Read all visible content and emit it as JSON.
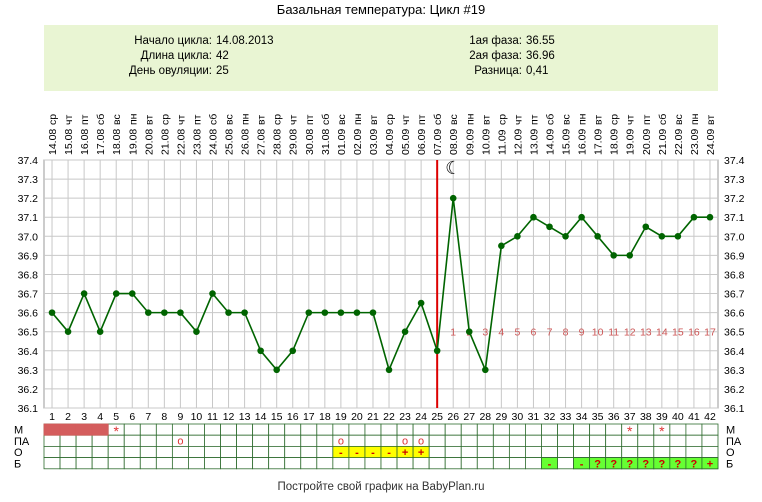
{
  "title": "Базальная температура: Цикл #19",
  "info": {
    "cycle_start_label": "Начало цикла:",
    "cycle_start_value": "14.08.2013",
    "cycle_length_label": "Длина цикла:",
    "cycle_length_value": "42",
    "ovulation_day_label": "День овуляции:",
    "ovulation_day_value": "25",
    "phase1_label": "1ая фаза:",
    "phase1_value": "36.55",
    "phase2_label": "2ая фаза:",
    "phase2_value": "36.96",
    "diff_label": "Разница:",
    "diff_value": "0,41"
  },
  "footer": "Постройте свой график на BabyPlan.ru",
  "chart_data": {
    "type": "line",
    "x": [
      1,
      2,
      3,
      4,
      5,
      6,
      7,
      8,
      9,
      10,
      11,
      12,
      13,
      14,
      15,
      16,
      17,
      18,
      19,
      20,
      21,
      22,
      23,
      24,
      25,
      26,
      27,
      28,
      29,
      30,
      31,
      32,
      33,
      34,
      35,
      36,
      37,
      38,
      39,
      40,
      41,
      42
    ],
    "dates": [
      "14.08",
      "15.08",
      "16.08",
      "17.08",
      "18.08",
      "19.08",
      "20.08",
      "21.08",
      "22.08",
      "23.08",
      "24.08",
      "25.08",
      "26.08",
      "27.08",
      "28.08",
      "29.08",
      "30.08",
      "31.08",
      "01.09",
      "02.09",
      "03.09",
      "04.09",
      "05.09",
      "06.09",
      "07.09",
      "08.09",
      "09.09",
      "10.09",
      "11.09",
      "12.09",
      "13.09",
      "14.09",
      "15.09",
      "16.09",
      "17.09",
      "18.09",
      "19.09",
      "20.09",
      "21.09",
      "22.09",
      "23.09",
      "24.09"
    ],
    "weekdays": [
      "ср",
      "чт",
      "пт",
      "сб",
      "вс",
      "пн",
      "вт",
      "ср",
      "чт",
      "пт",
      "сб",
      "вс",
      "пн",
      "вт",
      "ср",
      "чт",
      "пт",
      "сб",
      "вс",
      "пн",
      "вт",
      "ср",
      "чт",
      "пт",
      "сб",
      "вс",
      "пн",
      "вт",
      "ср",
      "чт",
      "пт",
      "сб",
      "вс",
      "пн",
      "вт",
      "ср",
      "чт",
      "пт",
      "сб",
      "вс",
      "пн",
      "вт"
    ],
    "series": [
      {
        "values": [
          36.6,
          36.5,
          36.7,
          36.5,
          36.7,
          36.7,
          36.6,
          36.6,
          36.6,
          36.5,
          36.7,
          36.6,
          36.6,
          36.4,
          36.3,
          36.4,
          36.6,
          36.6,
          36.6,
          36.6,
          36.6,
          36.3,
          36.5,
          36.65,
          36.4,
          37.2,
          36.5,
          36.3,
          36.95,
          37.0,
          37.1,
          37.05,
          37.0,
          37.1,
          37.0,
          36.9,
          36.9,
          37.05,
          37.0,
          37.0,
          37.1,
          37.1
        ],
        "color": "#006400"
      }
    ],
    "ylim": [
      36.1,
      37.4
    ],
    "yticks": [
      "36.1",
      "36.2",
      "36.3",
      "36.4",
      "36.5",
      "36.6",
      "36.7",
      "36.8",
      "36.9",
      "37.0",
      "37.1",
      "37.2",
      "37.3",
      "37.4"
    ],
    "ovulation_day": 25,
    "ovulation_line_color": "#dd0000",
    "phase_day_labels": [
      "1",
      "2",
      "3",
      "4",
      "5",
      "6",
      "7",
      "8",
      "9",
      "10",
      "11",
      "12",
      "13",
      "14",
      "15",
      "16",
      "17"
    ],
    "phase_day_color": "#cc5555",
    "moon_day": 26,
    "moon_symbol": "☾",
    "grid": true,
    "rows": {
      "labels": [
        "М",
        "ПА",
        "О",
        "Б"
      ],
      "menstruation_days": [
        1,
        2,
        3,
        4
      ],
      "menstruation_color": "#d45d5d",
      "star_days": [
        5,
        37,
        39
      ],
      "star_symbol": "*",
      "pa_days": [
        9,
        19,
        23,
        24
      ],
      "pa_symbol": "o",
      "o_days": [
        {
          "day": 19,
          "mark": "-"
        },
        {
          "day": 20,
          "mark": "-"
        },
        {
          "day": 21,
          "mark": "-"
        },
        {
          "day": 22,
          "mark": "-"
        },
        {
          "day": 23,
          "mark": "+"
        },
        {
          "day": 24,
          "mark": "+"
        }
      ],
      "o_color": "#ffff00",
      "b_days": [
        {
          "day": 32,
          "mark": "-"
        },
        {
          "day": 34,
          "mark": "-"
        },
        {
          "day": 35,
          "mark": "?"
        },
        {
          "day": 36,
          "mark": "?"
        },
        {
          "day": 37,
          "mark": "?"
        },
        {
          "day": 38,
          "mark": "?"
        },
        {
          "day": 39,
          "mark": "?"
        },
        {
          "day": 40,
          "mark": "?"
        },
        {
          "day": 41,
          "mark": "?"
        },
        {
          "day": 42,
          "mark": "+"
        }
      ],
      "b_color": "#66ff33"
    }
  }
}
